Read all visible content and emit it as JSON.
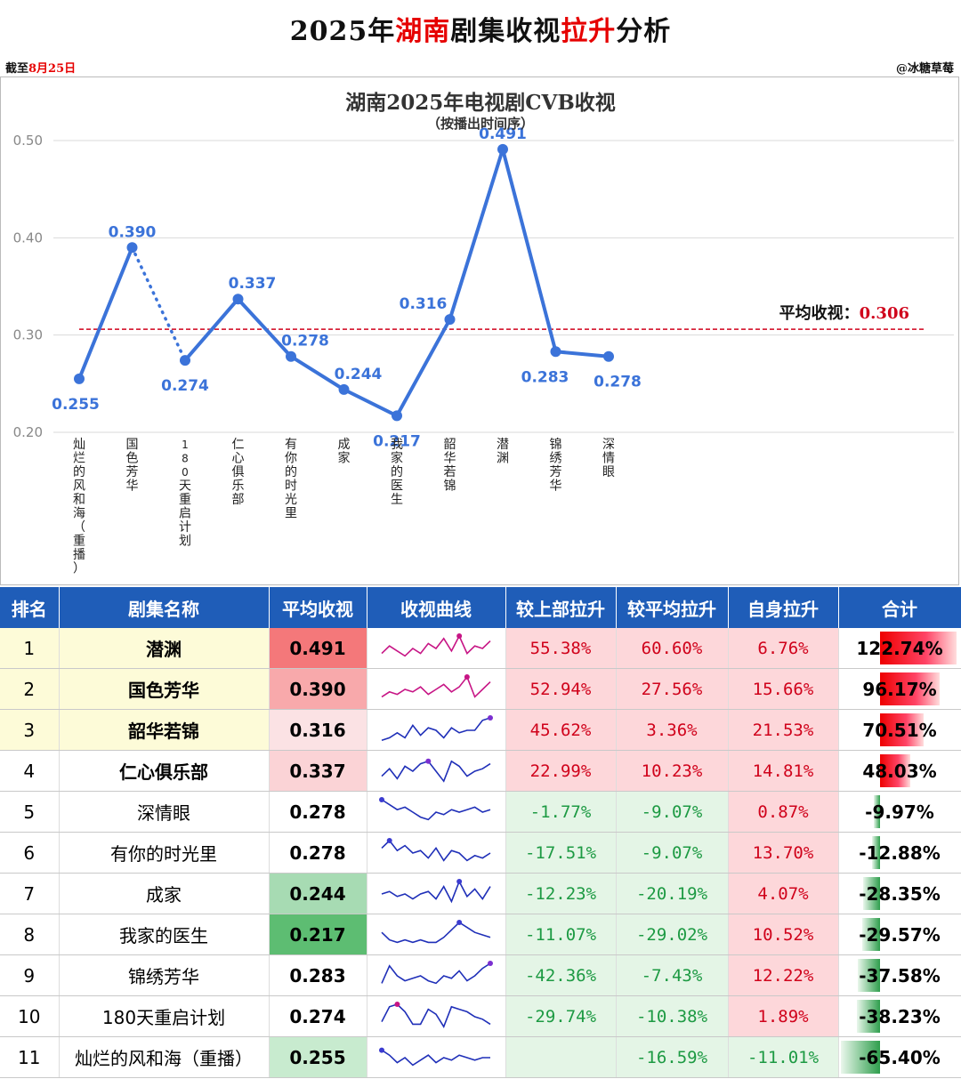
{
  "header": {
    "title_pre": "2025年",
    "title_red1": "湖南",
    "title_mid": "剧集收视",
    "title_red2": "拉升",
    "title_post": "分析",
    "asof_pre": "截至",
    "asof_date": "8月25日",
    "author": "@冰糖草莓"
  },
  "chart_data": {
    "type": "line",
    "title": "湖南2025年电视剧CVB收视",
    "subtitle": "（按播出时间序）",
    "categories": [
      "灿烂的风和海（重播）",
      "国色芳华",
      "180天重启计划",
      "仁心俱乐部",
      "有你的时光里",
      "成家",
      "我家的医生",
      "韶华若锦",
      "潜渊",
      "锦绣芳华",
      "深情眼"
    ],
    "values": [
      0.255,
      0.39,
      0.274,
      0.337,
      0.278,
      0.244,
      0.217,
      0.316,
      0.491,
      0.283,
      0.278
    ],
    "value_labels": [
      "0.255",
      "0.390",
      "0.274",
      "0.337",
      "0.278",
      "0.244",
      "0.217",
      "0.316",
      "0.491",
      "0.283",
      "0.278"
    ],
    "yticks": [
      "0.50",
      "0.40",
      "0.30",
      "0.20"
    ],
    "ylim": [
      0.2,
      0.5
    ],
    "average_label": "平均收视：",
    "average_value": "0.306",
    "average": 0.306,
    "dotted_segment": [
      1,
      2
    ],
    "line_color": "#3b73d9",
    "avg_color": "#d0021b"
  },
  "table": {
    "headers": [
      "排名",
      "剧集名称",
      "平均收视",
      "收视曲线",
      "较上部拉升",
      "较平均拉升",
      "自身拉升",
      "合计"
    ],
    "rows": [
      {
        "rank": "1",
        "name": "潜渊",
        "avg": "0.491",
        "prev": "55.38%",
        "vsavg": "60.60%",
        "self": "6.76%",
        "total": "122.74%",
        "total_v": 122.74
      },
      {
        "rank": "2",
        "name": "国色芳华",
        "avg": "0.390",
        "prev": "52.94%",
        "vsavg": "27.56%",
        "self": "15.66%",
        "total": "96.17%",
        "total_v": 96.17
      },
      {
        "rank": "3",
        "name": "韶华若锦",
        "avg": "0.316",
        "prev": "45.62%",
        "vsavg": "3.36%",
        "self": "21.53%",
        "total": "70.51%",
        "total_v": 70.51
      },
      {
        "rank": "4",
        "name": "仁心俱乐部",
        "avg": "0.337",
        "prev": "22.99%",
        "vsavg": "10.23%",
        "self": "14.81%",
        "total": "48.03%",
        "total_v": 48.03
      },
      {
        "rank": "5",
        "name": "深情眼",
        "avg": "0.278",
        "prev": "-1.77%",
        "vsavg": "-9.07%",
        "self": "0.87%",
        "total": "-9.97%",
        "total_v": -9.97
      },
      {
        "rank": "6",
        "name": "有你的时光里",
        "avg": "0.278",
        "prev": "-17.51%",
        "vsavg": "-9.07%",
        "self": "13.70%",
        "total": "-12.88%",
        "total_v": -12.88
      },
      {
        "rank": "7",
        "name": "成家",
        "avg": "0.244",
        "prev": "-12.23%",
        "vsavg": "-20.19%",
        "self": "4.07%",
        "total": "-28.35%",
        "total_v": -28.35
      },
      {
        "rank": "8",
        "name": "我家的医生",
        "avg": "0.217",
        "prev": "-11.07%",
        "vsavg": "-29.02%",
        "self": "10.52%",
        "total": "-29.57%",
        "total_v": -29.57
      },
      {
        "rank": "9",
        "name": "锦绣芳华",
        "avg": "0.283",
        "prev": "-42.36%",
        "vsavg": "-7.43%",
        "self": "12.22%",
        "total": "-37.58%",
        "total_v": -37.58
      },
      {
        "rank": "10",
        "name": "180天重启计划",
        "avg": "0.274",
        "prev": "-29.74%",
        "vsavg": "-10.38%",
        "self": "1.89%",
        "total": "-38.23%",
        "total_v": -38.23
      },
      {
        "rank": "11",
        "name": "灿烂的风和海（重播）",
        "avg": "0.255",
        "prev": "",
        "vsavg": "-16.59%",
        "self": "-11.01%",
        "total": "-65.40%",
        "total_v": -65.4
      }
    ],
    "sparklines": [
      [
        0.3,
        0.6,
        0.4,
        0.2,
        0.5,
        0.3,
        0.7,
        0.5,
        0.9,
        0.4,
        1.0,
        0.3,
        0.6,
        0.5,
        0.8
      ],
      [
        0.2,
        0.4,
        0.3,
        0.5,
        0.4,
        0.6,
        0.3,
        0.5,
        0.7,
        0.4,
        0.6,
        1.0,
        0.2,
        0.5,
        0.8
      ],
      [
        0.1,
        0.2,
        0.4,
        0.2,
        0.7,
        0.3,
        0.6,
        0.5,
        0.2,
        0.6,
        0.4,
        0.5,
        0.5,
        0.9,
        1.0
      ],
      [
        0.3,
        0.6,
        0.2,
        0.7,
        0.5,
        0.8,
        0.9,
        0.5,
        0.1,
        0.9,
        0.7,
        0.3,
        0.5,
        0.6,
        0.8
      ],
      [
        1.0,
        0.8,
        0.6,
        0.7,
        0.5,
        0.3,
        0.2,
        0.5,
        0.4,
        0.6,
        0.5,
        0.6,
        0.7,
        0.5,
        0.6
      ],
      [
        0.7,
        1.0,
        0.6,
        0.8,
        0.5,
        0.6,
        0.3,
        0.7,
        0.2,
        0.6,
        0.5,
        0.2,
        0.4,
        0.3,
        0.5
      ],
      [
        0.5,
        0.6,
        0.4,
        0.5,
        0.3,
        0.5,
        0.6,
        0.3,
        0.8,
        0.2,
        1.0,
        0.4,
        0.7,
        0.3,
        0.8
      ],
      [
        0.6,
        0.3,
        0.2,
        0.3,
        0.2,
        0.3,
        0.2,
        0.2,
        0.4,
        0.7,
        1.0,
        0.8,
        0.6,
        0.5,
        0.4
      ],
      [
        0.2,
        0.9,
        0.5,
        0.3,
        0.4,
        0.5,
        0.3,
        0.2,
        0.5,
        0.4,
        0.7,
        0.3,
        0.5,
        0.8,
        1.0
      ],
      [
        0.3,
        0.9,
        1.0,
        0.7,
        0.2,
        0.2,
        0.8,
        0.6,
        0.1,
        0.9,
        0.8,
        0.7,
        0.5,
        0.4,
        0.2
      ],
      [
        0.8,
        0.6,
        0.3,
        0.5,
        0.2,
        0.4,
        0.6,
        0.3,
        0.5,
        0.4,
        0.6,
        0.5,
        0.4,
        0.5,
        0.5
      ]
    ],
    "spark_colors": [
      "#c71585",
      "#c71585",
      "#1f2fb8",
      "#1f2fb8",
      "#1f2fb8",
      "#1f2fb8",
      "#1f2fb8",
      "#1f2fb8",
      "#1f2fb8",
      "#1f2fb8",
      "#1f2fb8"
    ],
    "spark_mark_colors": [
      "#c71585",
      "#c71585",
      "#7b2fd0",
      "#7b2fd0",
      "#3b3bd0",
      "#3b3bd0",
      "#3b3bd0",
      "#3b3bd0",
      "#7b2fd0",
      "#c71585",
      "#3b3bd0"
    ],
    "avg_bg_colors": [
      "#f4787a",
      "#f8a9ab",
      "#fbe2e4",
      "#fbd3d6",
      "#ffffff",
      "#ffffff",
      "#a7dbb3",
      "#5dbd72",
      "#ffffff",
      "#ffffff",
      "#c8ebcf"
    ]
  }
}
